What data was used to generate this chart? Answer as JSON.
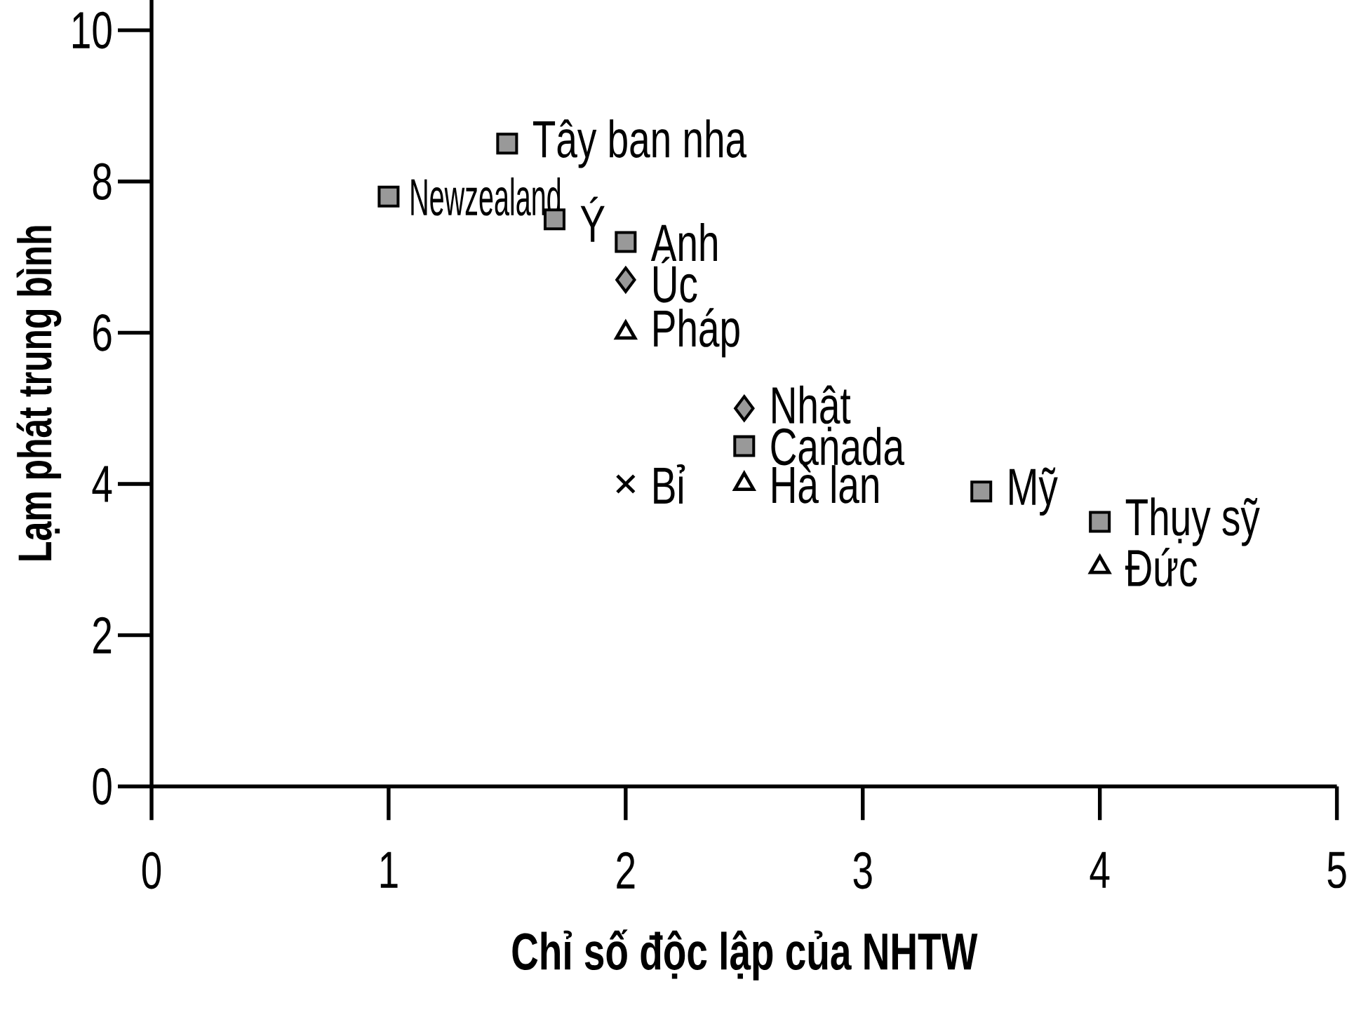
{
  "chart_data": {
    "type": "scatter",
    "xlabel": "Chỉ số độc lập của NHTW",
    "ylabel": "Lạm phát trung bình",
    "xlim": [
      0,
      5
    ],
    "xticks": [
      0,
      1,
      2,
      3,
      4,
      5
    ],
    "ylim": [
      0,
      10.4
    ],
    "yticks": [
      0,
      2,
      4,
      6,
      8,
      10
    ],
    "grid": false,
    "series": [
      {
        "marker": "square",
        "color": "#999999",
        "x": [
          1.5,
          1,
          1.7,
          2,
          2.5,
          3.5,
          4
        ],
        "values": [
          8.5,
          7.8,
          7.5,
          7.2,
          4.5,
          3.9,
          3.5
        ]
      },
      {
        "marker": "diamond",
        "color": "#999999",
        "x": [
          2,
          2.5
        ],
        "values": [
          6.7,
          5.0
        ]
      },
      {
        "marker": "triangle",
        "color": "#000000",
        "x": [
          2,
          2.5,
          4
        ],
        "values": [
          6.0,
          4.0,
          2.9
        ]
      },
      {
        "marker": "cross",
        "color": "#000000",
        "x": [
          2
        ],
        "values": [
          4.0
        ]
      }
    ],
    "annotations": [
      {
        "text": "Tây ban nha",
        "x": 1.5,
        "y": 8.5
      },
      {
        "text": "Newzealand",
        "x": 1,
        "y": 7.8
      },
      {
        "text": "Ý",
        "x": 1.7,
        "y": 7.5
      },
      {
        "text": "Anh",
        "x": 2,
        "y": 7.2
      },
      {
        "text": "Úc",
        "x": 2,
        "y": 6.7
      },
      {
        "text": "Pháp",
        "x": 2,
        "y": 6.0
      },
      {
        "text": "Nhật",
        "x": 2.5,
        "y": 5.0
      },
      {
        "text": "Canada",
        "x": 2.5,
        "y": 4.5
      },
      {
        "text": "Hà lan",
        "x": 2.5,
        "y": 4.0
      },
      {
        "text": "Bỉ",
        "x": 2,
        "y": 4.0
      },
      {
        "text": "Mỹ",
        "x": 3.5,
        "y": 3.9
      },
      {
        "text": "Thụy sỹ",
        "x": 4,
        "y": 3.5
      },
      {
        "text": "Đức",
        "x": 4,
        "y": 2.9
      }
    ]
  }
}
